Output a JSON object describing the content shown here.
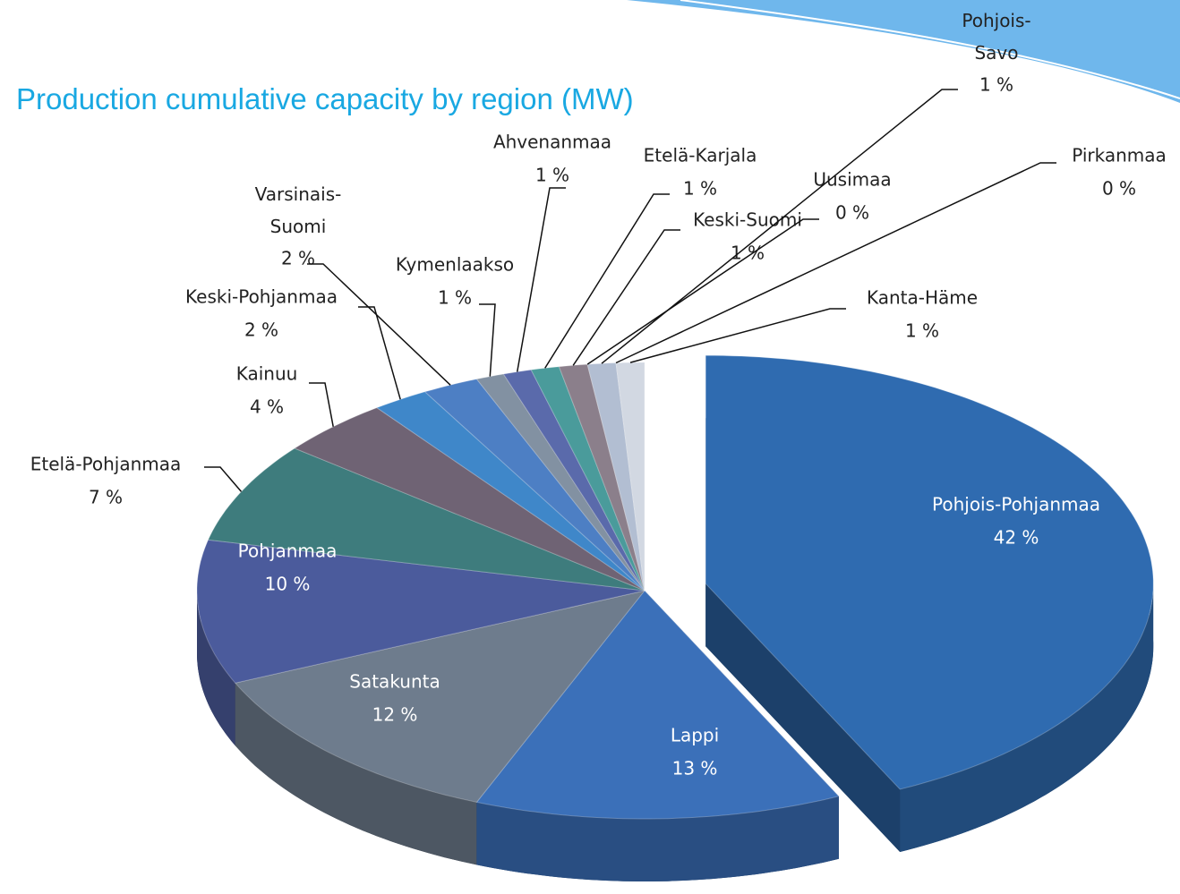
{
  "chart_data": {
    "type": "pie",
    "title": "Production cumulative capacity by region (MW)",
    "categories": [
      "Pohjois-Pohjanmaa",
      "Lappi",
      "Satakunta",
      "Pohjanmaa",
      "Etelä-Pohjanmaa",
      "Kainuu",
      "Keski-Pohjanmaa",
      "Varsinais-Suomi",
      "Kymenlaakso",
      "Ahvenanmaa",
      "Etelä-Karjala",
      "Keski-Suomi",
      "Uusimaa",
      "Pohjois-Savo",
      "Pirkanmaa",
      "Kanta-Häme"
    ],
    "values": [
      42,
      13,
      12,
      10,
      7,
      4,
      2,
      2,
      1,
      1,
      1,
      1,
      0,
      1,
      0,
      1
    ],
    "value_labels": [
      "42 %",
      "13 %",
      "12 %",
      "10 %",
      "7 %",
      "4 %",
      "2 %",
      "2 %",
      "1 %",
      "1 %",
      "1 %",
      "1 %",
      "0 %",
      "1 %",
      "0 %",
      "1 %"
    ],
    "colors": [
      "#2f6bb0",
      "#3b70b9",
      "#6e7c8d",
      "#4b5b9c",
      "#3e7c7d",
      "#6f6374",
      "#3f87c9",
      "#4d7fc4",
      "#8291a2",
      "#5a6aab",
      "#4a9b9b",
      "#8b7f8b",
      "#a2b5d1",
      "#b2bed2",
      "#c2cad9",
      "#d2d8e2"
    ]
  }
}
